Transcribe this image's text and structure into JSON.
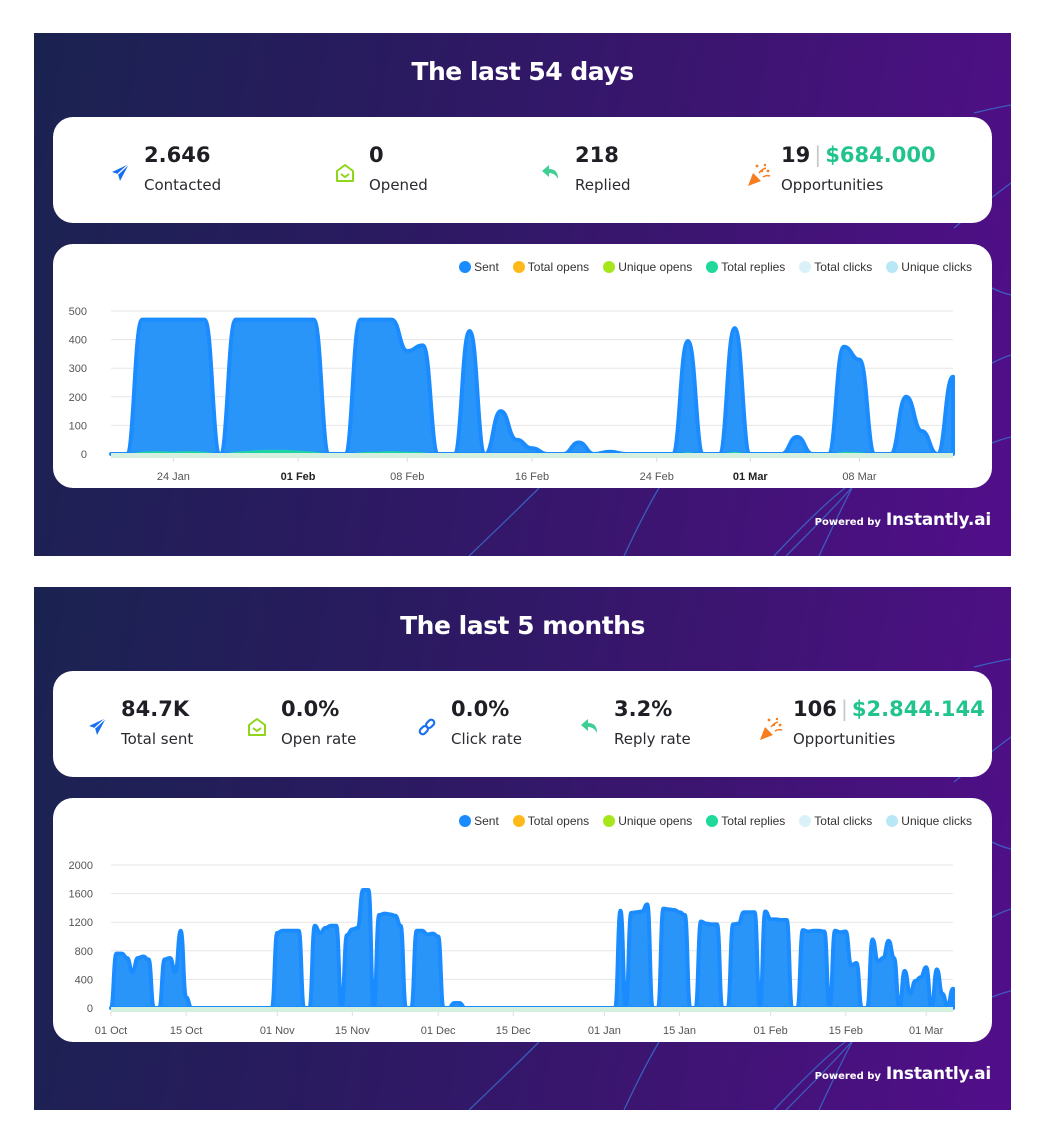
{
  "panels": [
    {
      "title": "The last 54 days",
      "stats": [
        {
          "icon": "paper-plane-icon",
          "value": "2.646",
          "label": "Contacted",
          "color": "#1a6ff0"
        },
        {
          "icon": "open-envelope-icon",
          "value": "0",
          "label": "Opened",
          "color": "#8fd61a"
        },
        {
          "icon": "reply-arrow-icon",
          "value": "218",
          "label": "Replied",
          "color": "#3ecf95"
        },
        {
          "icon": "party-popper-icon",
          "count": "19",
          "separator": "|",
          "amount": "$684.000",
          "label": "Opportunities",
          "color": "#f57c1f"
        }
      ],
      "powered_by": "Powered by",
      "brand": "Instantly.ai"
    },
    {
      "title": "The last 5 months",
      "stats": [
        {
          "icon": "paper-plane-icon",
          "value": "84.7K",
          "label": "Total sent",
          "color": "#1a6ff0"
        },
        {
          "icon": "open-envelope-icon",
          "value": "0.0%",
          "label": "Open rate",
          "color": "#8fd61a"
        },
        {
          "icon": "link-icon",
          "value": "0.0%",
          "label": "Click rate",
          "color": "#1a6ff0"
        },
        {
          "icon": "reply-arrow-icon",
          "value": "3.2%",
          "label": "Reply rate",
          "color": "#3ecf95"
        },
        {
          "icon": "party-popper-icon",
          "count": "106",
          "separator": "|",
          "amount": "$2.844.144",
          "label": "Opportunities",
          "color": "#f57c1f"
        }
      ],
      "powered_by": "Powered by",
      "brand": "Instantly.ai"
    }
  ],
  "legend": [
    {
      "name": "Sent",
      "color": "#1a8cff"
    },
    {
      "name": "Total opens",
      "color": "#ffb81a"
    },
    {
      "name": "Unique opens",
      "color": "#a6e61a"
    },
    {
      "name": "Total replies",
      "color": "#1ed99a"
    },
    {
      "name": "Total clicks",
      "color": "#d9f2fa"
    },
    {
      "name": "Unique clicks",
      "color": "#b8e8f5"
    }
  ],
  "chart_data": [
    {
      "type": "area",
      "title": "The last 54 days",
      "xlabel": "",
      "ylabel": "",
      "ylim": [
        0,
        500
      ],
      "yticks": [
        0,
        100,
        200,
        300,
        400,
        500
      ],
      "grid": true,
      "legend_position": "top-right",
      "x_start": "20 Jan",
      "x_ticks": [
        {
          "label": "24 Jan",
          "day": 4,
          "bold": false
        },
        {
          "label": "01 Feb",
          "day": 12,
          "bold": true
        },
        {
          "label": "08 Feb",
          "day": 19,
          "bold": false
        },
        {
          "label": "16 Feb",
          "day": 27,
          "bold": false
        },
        {
          "label": "24 Feb",
          "day": 35,
          "bold": false
        },
        {
          "label": "01 Mar",
          "day": 41,
          "bold": true
        },
        {
          "label": "08 Mar",
          "day": 48,
          "bold": false
        }
      ],
      "series": [
        {
          "name": "Sent",
          "values": [
            0,
            0,
            470,
            470,
            470,
            470,
            470,
            0,
            470,
            470,
            470,
            470,
            470,
            470,
            0,
            0,
            470,
            470,
            470,
            360,
            380,
            0,
            0,
            430,
            0,
            150,
            50,
            20,
            0,
            0,
            40,
            0,
            8,
            0,
            0,
            0,
            0,
            395,
            0,
            0,
            440,
            0,
            0,
            0,
            60,
            0,
            0,
            375,
            330,
            0,
            0,
            200,
            80,
            0,
            270
          ]
        },
        {
          "name": "Total replies",
          "values": [
            0,
            0,
            8,
            10,
            8,
            10,
            8,
            0,
            8,
            12,
            15,
            15,
            12,
            8,
            0,
            0,
            6,
            8,
            10,
            8,
            6,
            0,
            0,
            4,
            0,
            3,
            2,
            1,
            0,
            0,
            0,
            0,
            0,
            0,
            0,
            0,
            0,
            6,
            0,
            0,
            8,
            0,
            0,
            0,
            2,
            0,
            0,
            8,
            6,
            0,
            0,
            4,
            3,
            0,
            5
          ]
        },
        {
          "name": "Total opens",
          "values": []
        },
        {
          "name": "Unique opens",
          "values": []
        },
        {
          "name": "Total clicks",
          "values": []
        },
        {
          "name": "Unique clicks",
          "values": []
        }
      ]
    },
    {
      "type": "area",
      "title": "The last 5 months",
      "xlabel": "",
      "ylabel": "",
      "ylim": [
        0,
        2000
      ],
      "yticks": [
        0,
        400,
        800,
        1200,
        1600,
        2000
      ],
      "grid": true,
      "legend_position": "top-right",
      "x_start": "01 Oct",
      "x_ticks": [
        {
          "label": "01 Oct",
          "day": 0
        },
        {
          "label": "15 Oct",
          "day": 14
        },
        {
          "label": "01 Nov",
          "day": 31
        },
        {
          "label": "15 Nov",
          "day": 45
        },
        {
          "label": "01 Dec",
          "day": 61
        },
        {
          "label": "15 Dec",
          "day": 75
        },
        {
          "label": "01 Jan",
          "day": 92
        },
        {
          "label": "15 Jan",
          "day": 106
        },
        {
          "label": "01 Feb",
          "day": 123
        },
        {
          "label": "15 Feb",
          "day": 137
        },
        {
          "label": "01 Mar",
          "day": 152
        }
      ],
      "series": [
        {
          "name": "Sent",
          "values": [
            0,
            760,
            760,
            700,
            500,
            700,
            720,
            680,
            0,
            0,
            680,
            700,
            500,
            1080,
            150,
            0,
            0,
            0,
            0,
            0,
            0,
            0,
            0,
            0,
            0,
            0,
            0,
            0,
            0,
            0,
            0,
            1050,
            1080,
            1080,
            1080,
            1080,
            0,
            0,
            1150,
            1050,
            1120,
            1150,
            1150,
            0,
            1020,
            1100,
            1120,
            1650,
            1650,
            0,
            1300,
            1320,
            1310,
            1290,
            1150,
            0,
            0,
            1080,
            1080,
            1030,
            1040,
            1000,
            0,
            0,
            70,
            70,
            0,
            0,
            0,
            0,
            0,
            0,
            0,
            0,
            0,
            0,
            0,
            0,
            0,
            0,
            0,
            0,
            0,
            0,
            0,
            0,
            0,
            0,
            0,
            0,
            0,
            0,
            0,
            0,
            0,
            1360,
            0,
            1330,
            1340,
            1350,
            1450,
            0,
            0,
            1390,
            1380,
            1370,
            1340,
            1300,
            0,
            0,
            1210,
            1180,
            1170,
            1170,
            0,
            0,
            1170,
            1180,
            1340,
            1340,
            1340,
            0,
            1350,
            1240,
            1240,
            1230,
            1230,
            0,
            0,
            1090,
            1070,
            1080,
            1080,
            1070,
            0,
            1080,
            1060,
            1070,
            600,
            630,
            0,
            0,
            960,
            650,
            700,
            940,
            700,
            0,
            520,
            200,
            380,
            430,
            570,
            0,
            540,
            200,
            30,
            270
          ]
        },
        {
          "name": "Total replies",
          "values": []
        },
        {
          "name": "Total opens",
          "values": []
        },
        {
          "name": "Unique opens",
          "values": []
        },
        {
          "name": "Total clicks",
          "values": []
        },
        {
          "name": "Unique clicks",
          "values": []
        }
      ]
    }
  ]
}
